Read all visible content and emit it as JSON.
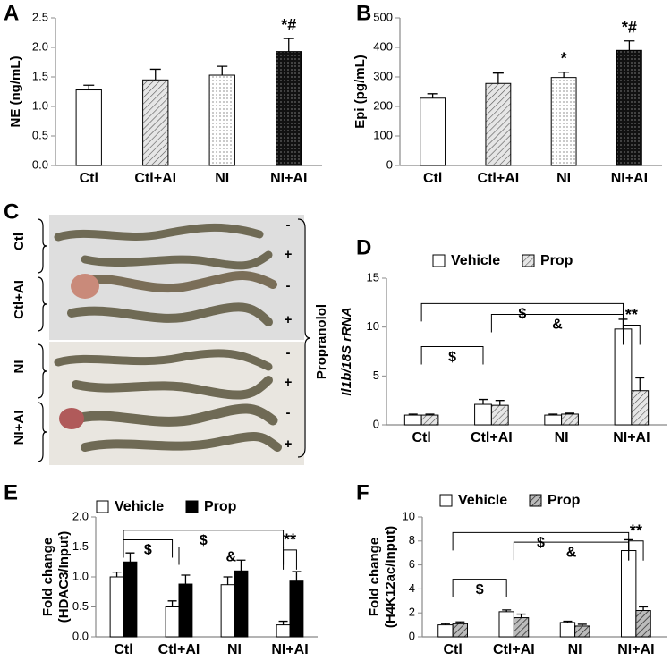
{
  "chart_data": [
    {
      "type": "bar",
      "panel_label": "A",
      "ylabel": [
        "NE (ng/mL)"
      ],
      "categories": [
        "Ctl",
        "Ctl+AI",
        "NI",
        "NI+AI"
      ],
      "values": [
        1.28,
        1.45,
        1.53,
        1.93
      ],
      "errors": [
        0.08,
        0.18,
        0.15,
        0.22
      ],
      "patterns": [
        null,
        "hatch",
        "dots",
        "dark-dots"
      ],
      "annotations": [
        null,
        null,
        null,
        "*#"
      ],
      "ylim": [
        0,
        2.5
      ],
      "yticks": [
        {
          "value": 0,
          "label": "0.0"
        },
        0.5,
        {
          "value": 1,
          "label": "1.0"
        },
        1.5,
        {
          "value": 2,
          "label": "2.0"
        },
        2.5
      ]
    },
    {
      "type": "bar",
      "panel_label": "B",
      "ylabel": [
        "Epi (pg/mL)"
      ],
      "categories": [
        "Ctl",
        "Ctl+AI",
        "NI",
        "NI+AI"
      ],
      "values": [
        228,
        278,
        298,
        390
      ],
      "errors": [
        15,
        35,
        18,
        32
      ],
      "patterns": [
        null,
        "hatch",
        "dots",
        "dark-dots"
      ],
      "annotations": [
        null,
        null,
        "*",
        "*#"
      ],
      "ylim": [
        0,
        500
      ],
      "yticks": [
        0,
        100,
        200,
        300,
        400,
        500
      ]
    },
    {
      "type": "grouped-bar",
      "panel_label": "D",
      "ylabel": [
        "Il1b/18S rRNA"
      ],
      "categories": [
        "Ctl",
        "Ctl+AI",
        "NI",
        "NI+AI"
      ],
      "series": [
        {
          "name": "Vehicle",
          "color": "#ffffff",
          "pattern": null,
          "values": [
            1.0,
            2.1,
            1.0,
            9.8
          ],
          "errors": [
            0.1,
            0.5,
            0.1,
            1.0
          ]
        },
        {
          "name": "Prop",
          "color": "#ffffff",
          "pattern": "hatch",
          "values": [
            1.0,
            2.0,
            1.1,
            3.5
          ],
          "errors": [
            0.1,
            0.5,
            0.1,
            1.3
          ]
        }
      ],
      "brackets": [
        "$",
        "$",
        "&",
        "**"
      ],
      "ylim": [
        0,
        15
      ],
      "yticks": [
        0,
        5,
        10,
        15
      ]
    },
    {
      "type": "grouped-bar",
      "panel_label": "E",
      "ylabel": [
        "Fold change",
        "(HDAC3/Input)"
      ],
      "categories": [
        "Ctl",
        "Ctl+AI",
        "NI",
        "NI+AI"
      ],
      "series": [
        {
          "name": "Vehicle",
          "color": "#ffffff",
          "pattern": null,
          "values": [
            1.0,
            0.5,
            0.87,
            0.2
          ],
          "errors": [
            0.08,
            0.1,
            0.13,
            0.06
          ]
        },
        {
          "name": "Prop",
          "color": "#000000",
          "pattern": null,
          "values": [
            1.25,
            0.88,
            1.1,
            0.93
          ],
          "errors": [
            0.15,
            0.15,
            0.18,
            0.16
          ]
        }
      ],
      "brackets": [
        "$",
        "$",
        "&",
        "**"
      ],
      "ylim": [
        0,
        2
      ],
      "yticks": [
        {
          "value": 0,
          "label": "0.0"
        },
        0.5,
        {
          "value": 1,
          "label": "1.0"
        },
        1.5,
        {
          "value": 2,
          "label": "2.0"
        }
      ]
    },
    {
      "type": "grouped-bar",
      "panel_label": "F",
      "ylabel": [
        "Fold change",
        "(H4K12ac/Input)"
      ],
      "categories": [
        "Ctl",
        "Ctl+AI",
        "NI",
        "NI+AI"
      ],
      "series": [
        {
          "name": "Vehicle",
          "color": "#ffffff",
          "pattern": null,
          "values": [
            1.0,
            2.1,
            1.2,
            7.2
          ],
          "errors": [
            0.1,
            0.15,
            0.1,
            0.9
          ]
        },
        {
          "name": "Prop",
          "color": "#ffffff",
          "pattern": "dark-hatch",
          "values": [
            1.1,
            1.6,
            0.9,
            2.2
          ],
          "errors": [
            0.15,
            0.3,
            0.15,
            0.3
          ]
        }
      ],
      "brackets": [
        "$",
        "$",
        "&",
        "**"
      ],
      "ylim": [
        0,
        10
      ],
      "yticks": [
        0,
        2,
        4,
        6,
        8,
        10
      ]
    }
  ],
  "photo": {
    "panel_label": "C",
    "groups": [
      "Ctl",
      "Ctl+AI",
      "NI",
      "NI+AI"
    ],
    "signs": [
      "-",
      "+",
      "-",
      "+",
      "-",
      "+",
      "-",
      "+"
    ],
    "treatment": "Propranolol"
  }
}
